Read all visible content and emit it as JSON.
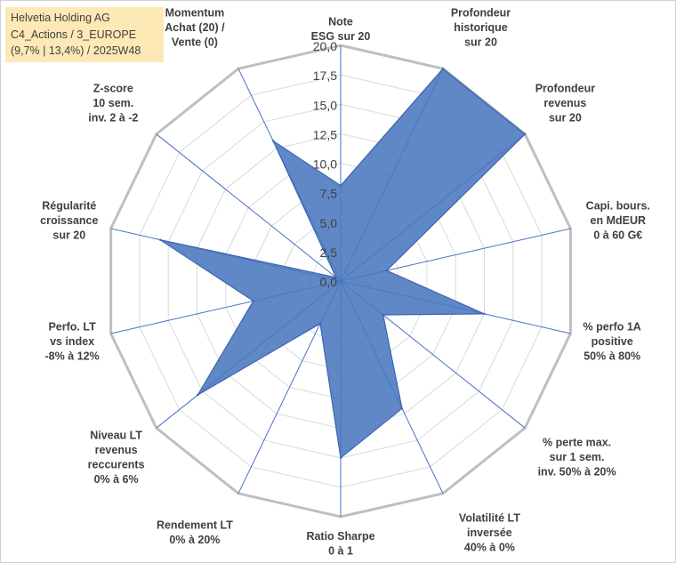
{
  "header": {
    "line1": "Helvetia Holding AG",
    "line2": "C4_Actions / 3_EUROPE",
    "line3": "(9,7% | 13,4%) / 2025W48"
  },
  "colors": {
    "fill": "#4a78be",
    "stroke": "#3b66b0",
    "grid": "#d9d9d9",
    "outer_ring": "#bfbfbf",
    "spoke": "#4472c4",
    "title_bg": "#fde9b6",
    "label_text": "#404040"
  },
  "chart_data": {
    "type": "radar",
    "rmin": 0,
    "rmax": 20,
    "rings": [
      0,
      2.5,
      5,
      7.5,
      10,
      12.5,
      15,
      17.5,
      20
    ],
    "tick_labels": [
      "0,0",
      "2,5",
      "5,0",
      "7,5",
      "10,0",
      "12,5",
      "15,0",
      "17,5",
      "20,0"
    ],
    "axes": [
      {
        "label": [
          "Note",
          "ESG sur 20"
        ],
        "value": 8.1
      },
      {
        "label": [
          "Profondeur",
          "historique",
          "sur 20"
        ],
        "value": 20.0
      },
      {
        "label": [
          "Profondeur",
          "revenus",
          "sur 20"
        ],
        "value": 20.0
      },
      {
        "label": [
          "Capi. bours.",
          "en MdEUR",
          "0 à 60 G€"
        ],
        "value": 4.0
      },
      {
        "label": [
          "% perfo 1A",
          "positive",
          "50% à 80%"
        ],
        "value": 12.5
      },
      {
        "label": [
          "% perte max.",
          "sur 1 sem.",
          "inv. 50% à 20%"
        ],
        "value": 4.6
      },
      {
        "label": [
          "Volatilité LT",
          "inversée",
          "40% à 0%"
        ],
        "value": 12.0
      },
      {
        "label": [
          "Ratio Sharpe",
          "0 à 1"
        ],
        "value": 15.0
      },
      {
        "label": [
          "Rendement LT",
          "0% à 20%"
        ],
        "value": 4.0
      },
      {
        "label": [
          "Niveau LT",
          "revenus",
          "reccurents",
          "0% à 6%"
        ],
        "value": 15.5
      },
      {
        "label": [
          "Perfo. LT",
          "vs index",
          "-8% à 12%"
        ],
        "value": 7.6
      },
      {
        "label": [
          "Régularité",
          "croissance",
          "sur 20"
        ],
        "value": 15.7
      },
      {
        "label": [
          "Z-score",
          "10 sem.",
          "inv. 2 à -2"
        ],
        "value": 0.5
      },
      {
        "label": [
          "Momentum",
          "Achat (20) /",
          "Vente (0)"
        ],
        "value": 13.2
      }
    ]
  }
}
